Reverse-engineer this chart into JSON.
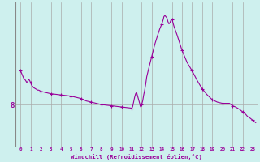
{
  "xlabel": "Windchill (Refroidissement éolien,°C)",
  "background_color": "#cef0ee",
  "line_color": "#990099",
  "marker_color": "#990099",
  "grid_color": "#aaaaaa",
  "axis_label_color": "#990099",
  "ytick_label_color": "#990099",
  "xtick_label_color": "#990099",
  "xlim": [
    -0.5,
    23.5
  ],
  "ylim": [
    4.5,
    16.5
  ],
  "yticks": [
    8
  ],
  "ytick_labels": [
    "8"
  ],
  "figsize": [
    3.2,
    2.0
  ],
  "dpi": 100,
  "hours_data_x": [
    0.0,
    0.1,
    0.2,
    0.3,
    0.4,
    0.5,
    0.6,
    0.7,
    0.8,
    0.9,
    1.0,
    1.1,
    1.2,
    1.3,
    1.4,
    1.5,
    1.6,
    1.7,
    1.8,
    1.9,
    2.0,
    2.5,
    3.0,
    3.5,
    4.0,
    4.5,
    5.0,
    5.5,
    6.0,
    6.5,
    7.0,
    7.5,
    8.0,
    8.5,
    9.0,
    9.5,
    10.0,
    10.5,
    11.0,
    11.1,
    11.2,
    11.3,
    11.4,
    11.5,
    11.6,
    11.7,
    11.8,
    11.85,
    11.9,
    12.0,
    12.1,
    12.2,
    12.3,
    12.4,
    12.5,
    12.7,
    13.0,
    13.3,
    13.6,
    13.8,
    14.0,
    14.15,
    14.2,
    14.3,
    14.4,
    14.5,
    14.6,
    14.7,
    14.8,
    14.9,
    15.0,
    15.1,
    15.2,
    15.5,
    16.0,
    16.5,
    17.0,
    17.5,
    18.0,
    18.5,
    19.0,
    19.5,
    20.0,
    20.3,
    20.5,
    20.7,
    21.0,
    21.3,
    21.5,
    21.7,
    22.0,
    22.3,
    22.5,
    22.7,
    23.0,
    23.3
  ],
  "hours_data_y": [
    10.8,
    10.6,
    10.4,
    10.2,
    10.1,
    10.0,
    9.85,
    9.9,
    10.1,
    10.0,
    9.8,
    9.6,
    9.5,
    9.4,
    9.35,
    9.3,
    9.25,
    9.2,
    9.2,
    9.15,
    9.1,
    9.0,
    8.9,
    8.85,
    8.8,
    8.75,
    8.7,
    8.6,
    8.5,
    8.3,
    8.2,
    8.1,
    8.0,
    7.95,
    7.9,
    7.85,
    7.8,
    7.75,
    7.7,
    7.8,
    8.2,
    8.6,
    8.9,
    9.0,
    8.7,
    8.4,
    8.1,
    7.9,
    7.8,
    8.0,
    8.3,
    8.8,
    9.2,
    9.7,
    10.3,
    11.0,
    12.0,
    13.0,
    13.8,
    14.3,
    14.7,
    15.1,
    15.3,
    15.4,
    15.3,
    15.2,
    14.9,
    14.7,
    14.8,
    15.0,
    15.1,
    14.8,
    14.5,
    13.8,
    12.5,
    11.5,
    10.8,
    10.0,
    9.3,
    8.8,
    8.4,
    8.2,
    8.1,
    8.1,
    8.1,
    8.1,
    7.9,
    7.8,
    7.7,
    7.6,
    7.4,
    7.2,
    7.0,
    6.9,
    6.7,
    6.5
  ],
  "marker_hours": [
    0,
    1,
    2,
    3,
    4,
    5,
    6,
    7,
    8,
    9,
    10,
    11,
    12,
    13,
    14,
    15,
    16,
    17,
    18,
    19,
    20,
    21,
    22,
    23
  ],
  "marker_values": [
    10.8,
    9.8,
    9.1,
    8.9,
    8.8,
    8.7,
    8.5,
    8.2,
    8.0,
    7.9,
    7.8,
    7.7,
    8.0,
    12.0,
    14.7,
    15.1,
    12.5,
    10.8,
    9.3,
    8.4,
    8.1,
    7.9,
    7.4,
    6.7
  ]
}
